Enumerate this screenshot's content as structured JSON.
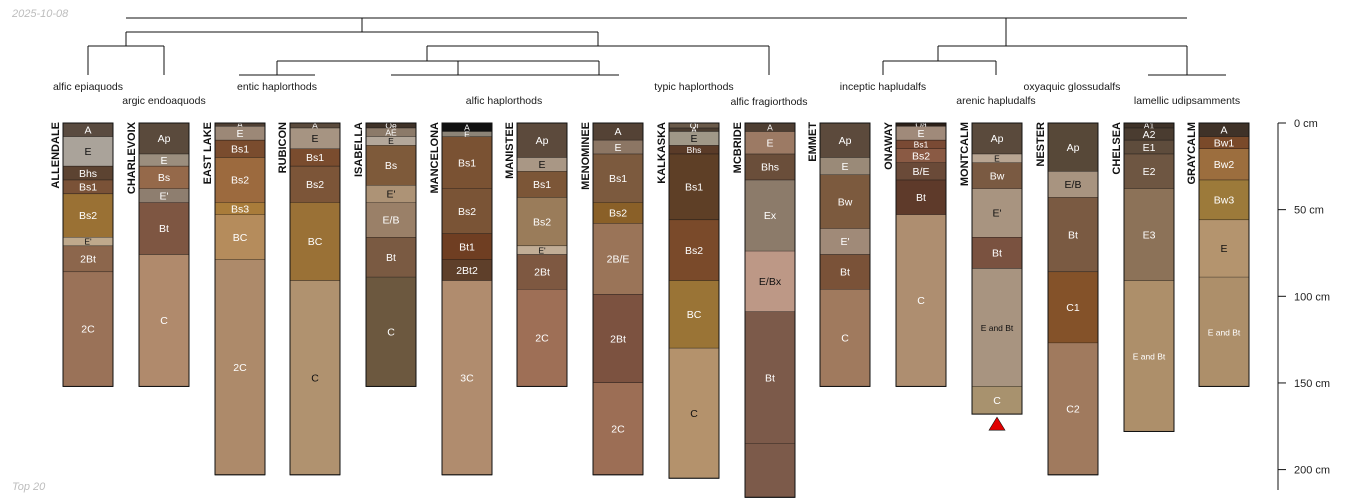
{
  "header": {
    "date": "2025-10-08"
  },
  "footer": {
    "caption": "Top 20"
  },
  "chart_data": {
    "type": "soil-profile-sketch",
    "depth_unit": "cm",
    "depth_axis": {
      "ticks": [
        0,
        50,
        100,
        150,
        200
      ],
      "labels": [
        "0 cm",
        "50 cm",
        "100 cm",
        "150 cm",
        "200 cm"
      ]
    },
    "subgroups": [
      "alfic epiaquods",
      "argic endoaquods",
      "entic haplorthods",
      "alfic haplorthods",
      "typic haplorthods",
      "alfic fragiorthods",
      "inceptic hapludalfs",
      "arenic hapludalfs",
      "oxyaquic glossudalfs",
      "lamellic udipsamments"
    ],
    "profiles": [
      {
        "name": "ALLENDALE",
        "horizons": [
          {
            "name": "A",
            "top": 0,
            "bottom": 8,
            "color": "#5a4b40"
          },
          {
            "name": "E",
            "top": 8,
            "bottom": 25,
            "color": "#aaa39a"
          },
          {
            "name": "Bhs",
            "top": 25,
            "bottom": 33,
            "color": "#5c4331"
          },
          {
            "name": "Bs1",
            "top": 33,
            "bottom": 41,
            "color": "#7a5237"
          },
          {
            "name": "Bs2",
            "top": 41,
            "bottom": 66,
            "color": "#9a7134"
          },
          {
            "name": "E'",
            "top": 66,
            "bottom": 71,
            "color": "#bfa98c"
          },
          {
            "name": "2Bt",
            "top": 71,
            "bottom": 86,
            "color": "#8c664c"
          },
          {
            "name": "2C",
            "top": 86,
            "bottom": 152,
            "color": "#9a7258"
          }
        ]
      },
      {
        "name": "CHARLEVOIX",
        "horizons": [
          {
            "name": "Ap",
            "top": 0,
            "bottom": 18,
            "color": "#5a4a3c"
          },
          {
            "name": "E",
            "top": 18,
            "bottom": 25,
            "color": "#9b8e7e"
          },
          {
            "name": "Bs",
            "top": 25,
            "bottom": 38,
            "color": "#95694a"
          },
          {
            "name": "E'",
            "top": 38,
            "bottom": 46,
            "color": "#8e7e6f"
          },
          {
            "name": "Bt",
            "top": 46,
            "bottom": 76,
            "color": "#7e5642"
          },
          {
            "name": "C",
            "top": 76,
            "bottom": 152,
            "color": "#b08a6c"
          }
        ]
      },
      {
        "name": "EAST LAKE",
        "horizons": [
          {
            "name": "A",
            "top": 0,
            "bottom": 2,
            "color": "#4f3f33"
          },
          {
            "name": "E",
            "top": 2,
            "bottom": 10,
            "color": "#9c8877"
          },
          {
            "name": "Bs1",
            "top": 10,
            "bottom": 20,
            "color": "#7a4c2e"
          },
          {
            "name": "Bs2",
            "top": 20,
            "bottom": 46,
            "color": "#9c6a3e"
          },
          {
            "name": "Bs3",
            "top": 46,
            "bottom": 53,
            "color": "#a97c3a"
          },
          {
            "name": "BC",
            "top": 53,
            "bottom": 79,
            "color": "#b58c5c"
          },
          {
            "name": "2C",
            "top": 79,
            "bottom": 203,
            "color": "#ad8a6a"
          }
        ]
      },
      {
        "name": "RUBICON",
        "horizons": [
          {
            "name": "A",
            "top": 0,
            "bottom": 3,
            "color": "#5a4a3c"
          },
          {
            "name": "E",
            "top": 3,
            "bottom": 15,
            "color": "#a69482"
          },
          {
            "name": "Bs1",
            "top": 15,
            "bottom": 25,
            "color": "#7a4c2e"
          },
          {
            "name": "Bs2",
            "top": 25,
            "bottom": 46,
            "color": "#7c5538"
          },
          {
            "name": "BC",
            "top": 46,
            "bottom": 91,
            "color": "#9a7136"
          },
          {
            "name": "C",
            "top": 91,
            "bottom": 203,
            "color": "#b0926f"
          }
        ]
      },
      {
        "name": "ISABELLA",
        "horizons": [
          {
            "name": "Oe",
            "top": 0,
            "bottom": 3,
            "color": "#3f3228"
          },
          {
            "name": "AE",
            "top": 3,
            "bottom": 8,
            "color": "#8c7a69"
          },
          {
            "name": "E",
            "top": 8,
            "bottom": 13,
            "color": "#b3a79a"
          },
          {
            "name": "Bs",
            "top": 13,
            "bottom": 36,
            "color": "#7e5a3a"
          },
          {
            "name": "E'",
            "top": 36,
            "bottom": 46,
            "color": "#ad9376"
          },
          {
            "name": "E/B",
            "top": 46,
            "bottom": 66,
            "color": "#9a8068"
          },
          {
            "name": "Bt",
            "top": 66,
            "bottom": 89,
            "color": "#7a5a42"
          },
          {
            "name": "C",
            "top": 89,
            "bottom": 152,
            "color": "#6c583f"
          }
        ]
      },
      {
        "name": "MANCELONA",
        "horizons": [
          {
            "name": "A",
            "top": 0,
            "bottom": 5,
            "color": "#111111"
          },
          {
            "name": "E",
            "top": 5,
            "bottom": 8,
            "color": "#8c8477"
          },
          {
            "name": "Bs1",
            "top": 8,
            "bottom": 38,
            "color": "#7a5233"
          },
          {
            "name": "Bs2",
            "top": 38,
            "bottom": 64,
            "color": "#7a5436"
          },
          {
            "name": "Bt1",
            "top": 64,
            "bottom": 79,
            "color": "#6f3e22"
          },
          {
            "name": "2Bt2",
            "top": 79,
            "bottom": 91,
            "color": "#5e3f2a"
          },
          {
            "name": "3C",
            "top": 91,
            "bottom": 203,
            "color": "#b08c6e"
          }
        ]
      },
      {
        "name": "MANISTEE",
        "horizons": [
          {
            "name": "Ap",
            "top": 0,
            "bottom": 20,
            "color": "#5c4a3c"
          },
          {
            "name": "E",
            "top": 20,
            "bottom": 28,
            "color": "#a99785"
          },
          {
            "name": "Bs1",
            "top": 28,
            "bottom": 43,
            "color": "#7c5637"
          },
          {
            "name": "Bs2",
            "top": 43,
            "bottom": 71,
            "color": "#9a7c5a"
          },
          {
            "name": "E'",
            "top": 71,
            "bottom": 76,
            "color": "#c1ad96"
          },
          {
            "name": "2Bt",
            "top": 76,
            "bottom": 96,
            "color": "#7e5841"
          },
          {
            "name": "2C",
            "top": 96,
            "bottom": 152,
            "color": "#9e6f56"
          }
        ]
      },
      {
        "name": "MENOMINEE",
        "horizons": [
          {
            "name": "A",
            "top": 0,
            "bottom": 10,
            "color": "#544235"
          },
          {
            "name": "E",
            "top": 10,
            "bottom": 18,
            "color": "#8c7664"
          },
          {
            "name": "Bs1",
            "top": 18,
            "bottom": 46,
            "color": "#7c5a3e"
          },
          {
            "name": "Bs2",
            "top": 46,
            "bottom": 58,
            "color": "#8a6028"
          },
          {
            "name": "2B/E",
            "top": 58,
            "bottom": 99,
            "color": "#9a7458"
          },
          {
            "name": "2Bt",
            "top": 99,
            "bottom": 150,
            "color": "#7c5240"
          },
          {
            "name": "2C",
            "top": 150,
            "bottom": 203,
            "color": "#9c6e55"
          }
        ]
      },
      {
        "name": "KALKASKA",
        "horizons": [
          {
            "name": "Oi",
            "top": 0,
            "bottom": 3,
            "color": "#6a5a4a"
          },
          {
            "name": "A",
            "top": 3,
            "bottom": 5,
            "color": "#4a3c30"
          },
          {
            "name": "E",
            "top": 5,
            "bottom": 13,
            "color": "#a09888"
          },
          {
            "name": "Bhs",
            "top": 13,
            "bottom": 18,
            "color": "#5a3b28"
          },
          {
            "name": "Bs1",
            "top": 18,
            "bottom": 56,
            "color": "#5e3f26"
          },
          {
            "name": "Bs2",
            "top": 56,
            "bottom": 91,
            "color": "#7a4a2a"
          },
          {
            "name": "BC",
            "top": 91,
            "bottom": 130,
            "color": "#9a7436"
          },
          {
            "name": "C",
            "top": 130,
            "bottom": 205,
            "color": "#b4926c"
          }
        ]
      },
      {
        "name": "MCBRIDE",
        "horizons": [
          {
            "name": "A",
            "top": 0,
            "bottom": 5,
            "color": "#4e3e32"
          },
          {
            "name": "E",
            "top": 5,
            "bottom": 18,
            "color": "#9c7a64"
          },
          {
            "name": "Bhs",
            "top": 18,
            "bottom": 33,
            "color": "#6a4e3a"
          },
          {
            "name": "Ex",
            "top": 33,
            "bottom": 74,
            "color": "#8c7b6a"
          },
          {
            "name": "E/Bx",
            "top": 74,
            "bottom": 109,
            "color": "#bd9886"
          },
          {
            "name": "Bt",
            "top": 109,
            "bottom": 185,
            "color": "#7c5a4a"
          },
          {
            "name": "",
            "top": 185,
            "bottom": 216,
            "color": "#7c5a4a"
          }
        ]
      },
      {
        "name": "EMMET",
        "horizons": [
          {
            "name": "Ap",
            "top": 0,
            "bottom": 20,
            "color": "#5c4a3c"
          },
          {
            "name": "E",
            "top": 20,
            "bottom": 30,
            "color": "#9a8a78"
          },
          {
            "name": "Bw",
            "top": 30,
            "bottom": 61,
            "color": "#7c5a3e"
          },
          {
            "name": "E'",
            "top": 61,
            "bottom": 76,
            "color": "#a08a78"
          },
          {
            "name": "Bt",
            "top": 76,
            "bottom": 96,
            "color": "#7a5238"
          },
          {
            "name": "C",
            "top": 96,
            "bottom": 152,
            "color": "#a07a5e"
          }
        ]
      },
      {
        "name": "ONAWAY",
        "horizons": [
          {
            "name": "Oa",
            "top": 0,
            "bottom": 2,
            "color": "#2c2018"
          },
          {
            "name": "E",
            "top": 2,
            "bottom": 10,
            "color": "#a08a7a"
          },
          {
            "name": "Bs1",
            "top": 10,
            "bottom": 15,
            "color": "#7a4a34"
          },
          {
            "name": "Bs2",
            "top": 15,
            "bottom": 23,
            "color": "#8a5a44"
          },
          {
            "name": "B/E",
            "top": 23,
            "bottom": 33,
            "color": "#6a4a38"
          },
          {
            "name": "Bt",
            "top": 33,
            "bottom": 53,
            "color": "#5e3a2a"
          },
          {
            "name": "C",
            "top": 53,
            "bottom": 152,
            "color": "#ae8e70"
          }
        ]
      },
      {
        "name": "MONTCALM",
        "horizons": [
          {
            "name": "Ap",
            "top": 0,
            "bottom": 18,
            "color": "#5a4a3c"
          },
          {
            "name": "E",
            "top": 18,
            "bottom": 23,
            "color": "#b8a592"
          },
          {
            "name": "Bw",
            "top": 23,
            "bottom": 38,
            "color": "#7a5a42"
          },
          {
            "name": "E'",
            "top": 38,
            "bottom": 66,
            "color": "#a89480"
          },
          {
            "name": "Bt",
            "top": 66,
            "bottom": 84,
            "color": "#7a5240"
          },
          {
            "name": "E and Bt",
            "top": 84,
            "bottom": 152,
            "color": "#a89480"
          },
          {
            "name": "C",
            "top": 152,
            "bottom": 168,
            "color": "#a8926e"
          }
        ]
      },
      {
        "name": "NESTER",
        "horizons": [
          {
            "name": "Ap",
            "top": 0,
            "bottom": 28,
            "color": "#574838"
          },
          {
            "name": "E/B",
            "top": 28,
            "bottom": 43,
            "color": "#a89480"
          },
          {
            "name": "Bt",
            "top": 43,
            "bottom": 86,
            "color": "#7a5a42"
          },
          {
            "name": "C1",
            "top": 86,
            "bottom": 127,
            "color": "#845229"
          },
          {
            "name": "C2",
            "top": 127,
            "bottom": 203,
            "color": "#a07a5e"
          }
        ]
      },
      {
        "name": "CHELSEA",
        "horizons": [
          {
            "name": "A1",
            "top": 0,
            "bottom": 3,
            "color": "#3f3228"
          },
          {
            "name": "A2",
            "top": 3,
            "bottom": 10,
            "color": "#4a3c30"
          },
          {
            "name": "E1",
            "top": 10,
            "bottom": 18,
            "color": "#5e4c3c"
          },
          {
            "name": "E2",
            "top": 18,
            "bottom": 38,
            "color": "#6e5642"
          },
          {
            "name": "E3",
            "top": 38,
            "bottom": 91,
            "color": "#8c7258"
          },
          {
            "name": "E and Bt",
            "top": 91,
            "bottom": 178,
            "color": "#ad8f6a"
          }
        ]
      },
      {
        "name": "GRAYCALM",
        "horizons": [
          {
            "name": "A",
            "top": 0,
            "bottom": 8,
            "color": "#3f3228"
          },
          {
            "name": "Bw1",
            "top": 8,
            "bottom": 15,
            "color": "#7a4a2a"
          },
          {
            "name": "Bw2",
            "top": 15,
            "bottom": 33,
            "color": "#9c6e3e"
          },
          {
            "name": "Bw3",
            "top": 33,
            "bottom": 56,
            "color": "#9c7a3a"
          },
          {
            "name": "E",
            "top": 56,
            "bottom": 89,
            "color": "#b4946e"
          },
          {
            "name": "E and Bt",
            "top": 89,
            "bottom": 152,
            "color": "#ad8f6a"
          }
        ]
      }
    ],
    "marker": {
      "profile": "MONTCALM",
      "color": "#e00000"
    }
  }
}
